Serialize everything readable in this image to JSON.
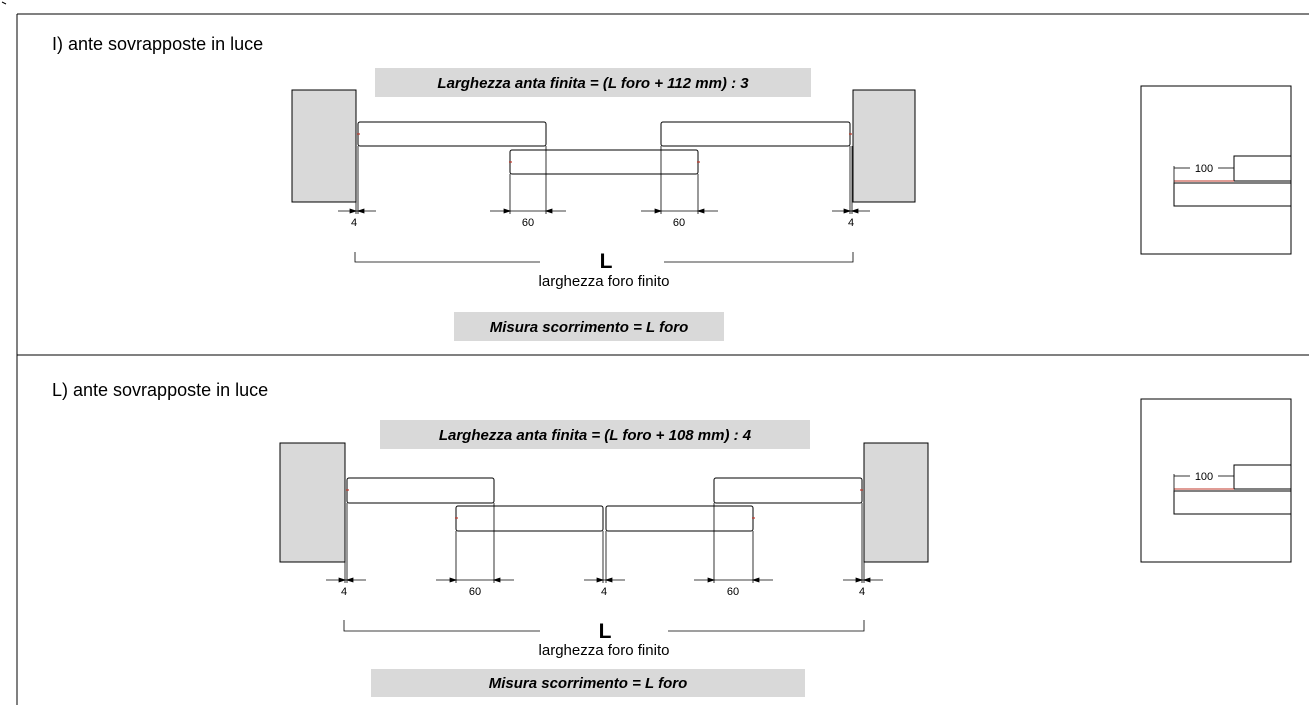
{
  "sections": [
    {
      "title": "I) ante sovrapposte in luce",
      "formula_top": "Larghezza anta finita = (L foro + 112 mm) : 3",
      "dimensions": [
        "4",
        "60",
        "60",
        "4"
      ],
      "length_symbol": "L",
      "length_caption": "larghezza foro finito",
      "formula_bottom": "Misura scorrimento = L foro",
      "detail_dimension": "100"
    },
    {
      "title": "L) ante sovrapposte in luce",
      "formula_top": "Larghezza anta finita = (L foro + 108 mm) : 4",
      "dimensions": [
        "4",
        "60",
        "4",
        "60",
        "4"
      ],
      "length_symbol": "L",
      "length_caption": "larghezza foro finito",
      "formula_bottom": "Misura scorrimento = L foro",
      "detail_dimension": "100"
    }
  ],
  "colors": {
    "wall_fill": "#d9d9d9",
    "label_fill": "#d9d9d9",
    "accent_red": "#c0392b",
    "line": "#000000"
  }
}
